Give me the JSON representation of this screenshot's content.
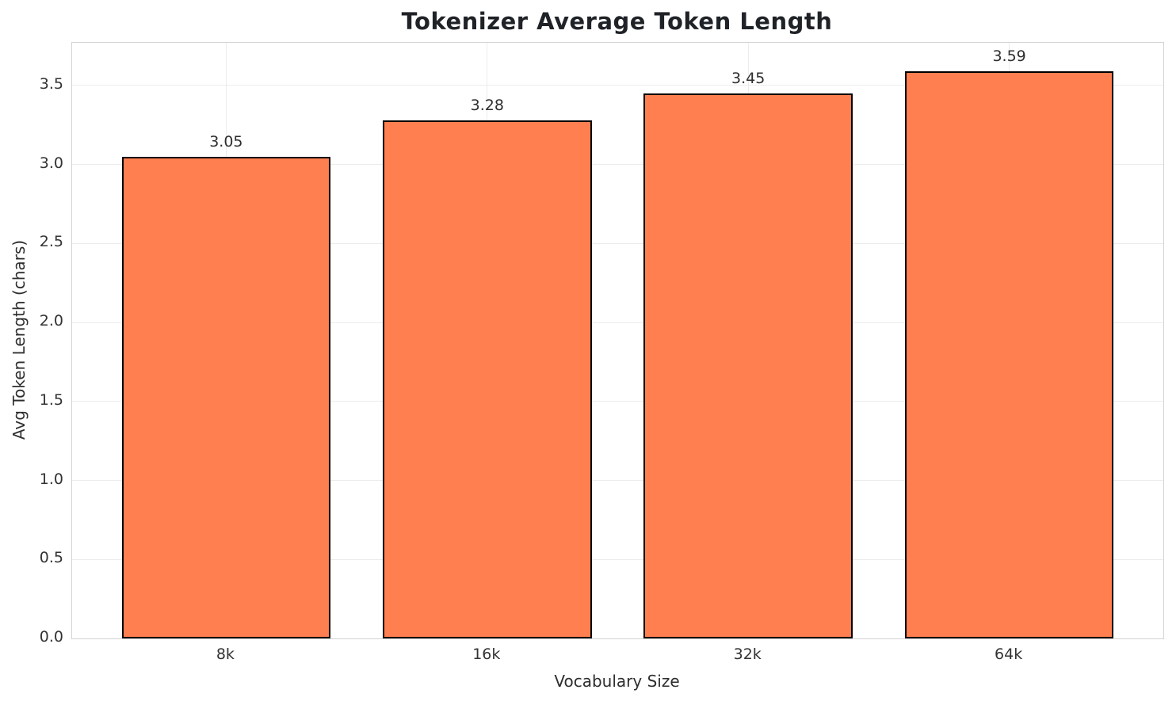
{
  "chart_data": {
    "type": "bar",
    "title": "Tokenizer Average Token Length",
    "xlabel": "Vocabulary Size",
    "ylabel": "Avg Token Length (chars)",
    "categories": [
      "8k",
      "16k",
      "32k",
      "64k"
    ],
    "values": [
      3.05,
      3.28,
      3.45,
      3.59
    ],
    "value_labels": [
      "3.05",
      "3.28",
      "3.45",
      "3.59"
    ],
    "yticks": [
      0.0,
      0.5,
      1.0,
      1.5,
      2.0,
      2.5,
      3.0,
      3.5
    ],
    "ytick_labels": [
      "0.0",
      "0.5",
      "1.0",
      "1.5",
      "2.0",
      "2.5",
      "3.0",
      "3.5"
    ],
    "ylim": [
      0,
      3.77
    ],
    "grid": true,
    "legend": "none",
    "bar_width_frac": 0.8,
    "bar_color": "#FF7F50",
    "bar_edge_color": "#000000",
    "grid_color": "#ececec",
    "spine_color": "#d4d4d4",
    "text_color": "#2e2e2e",
    "background": "#ffffff"
  }
}
